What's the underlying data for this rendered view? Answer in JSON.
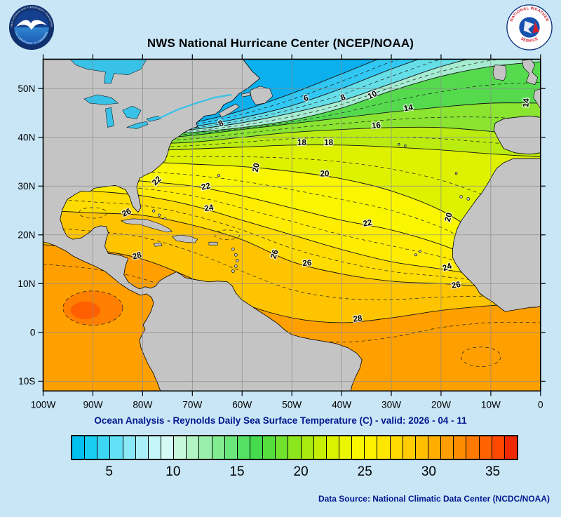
{
  "header": {
    "title": "NWS National Hurricane Center (NCEP/NOAA)",
    "noaa_logo": {
      "arc_top": "NATIONAL OCEANIC AND ATMOSPHERIC ADMINISTRATION",
      "arc_bottom": "U.S. DEPARTMENT OF COMMERCE"
    },
    "nws_logo": {
      "arc_top": "NATIONAL WEATHER",
      "arc_bottom": "SERVICE"
    }
  },
  "footer": {
    "subtitle": "Ocean Analysis - Reynolds Daily Sea Surface Temperature (C) - valid: 2026 - 04 - 11",
    "data_source": "Data Source: National Climatic Data Center (NCDC/NOAA)"
  },
  "colors": {
    "land": "#c4c4c4",
    "lake": "#38c2e8",
    "page_bg": "#c9e6f6",
    "subtitle_navy": "#02188f"
  },
  "chart_data": {
    "type": "heatmap",
    "title": "NWS National Hurricane Center (NCEP/NOAA)",
    "subtitle": "Ocean Analysis - Reynolds Daily Sea Surface Temperature (C) - valid: 2026 - 04 - 11",
    "variable": "Reynolds Daily Sea Surface Temperature",
    "unit": "C",
    "valid_date": "2026 - 04 - 11",
    "grid": true,
    "legend_position": "bottom",
    "map_extent": {
      "lon_west": 100,
      "lon_east": 0,
      "lat_top": 56,
      "lat_bottom": -12
    },
    "x_ticks": [
      {
        "label": "100W",
        "lon": 100
      },
      {
        "label": "90W",
        "lon": 90
      },
      {
        "label": "80W",
        "lon": 80
      },
      {
        "label": "70W",
        "lon": 70
      },
      {
        "label": "60W",
        "lon": 60
      },
      {
        "label": "50W",
        "lon": 50
      },
      {
        "label": "40W",
        "lon": 40
      },
      {
        "label": "30W",
        "lon": 30
      },
      {
        "label": "20W",
        "lon": 20
      },
      {
        "label": "10W",
        "lon": 10
      },
      {
        "label": "0",
        "lon": 0
      }
    ],
    "y_ticks": [
      {
        "label": "50N",
        "lat": 50
      },
      {
        "label": "40N",
        "lat": 40
      },
      {
        "label": "30N",
        "lat": 30
      },
      {
        "label": "20N",
        "lat": 20
      },
      {
        "label": "10N",
        "lat": 10
      },
      {
        "label": "0",
        "lat": 0
      },
      {
        "label": "10S",
        "lat": -10
      }
    ],
    "base_color": "#ffa000",
    "isotherms": [
      {
        "t": 28,
        "band_color": "#ffc400",
        "lats": [
          18,
          17,
          15,
          11,
          6,
          3,
          2,
          3,
          4.5,
          5.5,
          6
        ]
      },
      {
        "t": 26,
        "band_color": "#ffdc00",
        "lats": [
          25,
          24.5,
          24,
          22,
          19,
          14.5,
          12,
          10.5,
          10,
          9.5,
          10
        ]
      },
      {
        "t": 24,
        "band_color": "#ffec00",
        "lats": [
          30,
          29,
          28,
          26,
          23,
          20,
          17,
          14.5,
          13,
          11.5,
          11
        ]
      },
      {
        "t": 22,
        "band_color": "#f9f600",
        "lats": [
          33,
          32,
          31,
          30,
          28,
          25.5,
          23,
          21,
          18,
          14,
          12
        ]
      },
      {
        "t": 20,
        "band_color": "#def200",
        "lats": [
          36,
          35.5,
          35,
          34.5,
          34,
          33,
          31.5,
          29,
          25,
          19,
          15
        ]
      },
      {
        "t": 18,
        "band_color": "#baec10",
        "lats": [
          37,
          37,
          37.2,
          37.6,
          38,
          38.4,
          38.4,
          38,
          37.4,
          36.6,
          36
        ]
      },
      {
        "t": 16,
        "band_color": "#8ae430",
        "lats": [
          38,
          38.2,
          38.6,
          39,
          40,
          41,
          41.6,
          42,
          42,
          41.2,
          40.2
        ]
      },
      {
        "t": 14,
        "band_color": "#55da4e",
        "lats": [
          39,
          39.2,
          39.6,
          40.4,
          41.6,
          42.8,
          44,
          45.2,
          46.2,
          47,
          47
        ]
      },
      {
        "t": 10,
        "band_color": "#a6ecd2",
        "lats": [
          39.9,
          40.1,
          40.5,
          41,
          42,
          43.5,
          46,
          49.5,
          52.5,
          54.5,
          55.5
        ]
      },
      {
        "t": 8,
        "band_color": "#66dee8",
        "lats": [
          40.1,
          40.4,
          40.9,
          41.6,
          43,
          45,
          47.5,
          51,
          54.5,
          57,
          58
        ]
      },
      {
        "t": 6,
        "band_color": "#30c8f2",
        "lats": [
          40.3,
          40.7,
          41.3,
          42.2,
          44,
          46.5,
          50,
          54,
          57.5,
          60,
          61
        ]
      },
      {
        "t": 4,
        "band_color": "#0cb0ee",
        "lats": [
          40.5,
          41,
          41.8,
          43,
          45.5,
          49,
          53,
          57,
          60,
          62,
          63
        ]
      }
    ],
    "extra_dashed_isotherm": [
      14,
      13,
      11,
      7,
      2,
      -1,
      -2,
      -1,
      1,
      2,
      2
    ],
    "warm_blobs": [
      {
        "lon": 90,
        "lat": 5,
        "rx_deg": 6,
        "ry_deg": 3.5,
        "color": "#ff8000"
      },
      {
        "lon": 91.5,
        "lat": 4.5,
        "rx_deg": 3,
        "ry_deg": 1.8,
        "color": "#ff5f00"
      }
    ],
    "dashed_loops": [
      {
        "lon": 90,
        "lat": 5,
        "rx_deg": 6,
        "ry_deg": 3.5
      },
      {
        "lon": 90,
        "lat": 24.5,
        "rx_deg": 2.8,
        "ry_deg": 1.1
      },
      {
        "lon": 63,
        "lat": 20,
        "rx_deg": 2.5,
        "ry_deg": 1
      },
      {
        "lon": 12,
        "lat": -5,
        "rx_deg": 4,
        "ry_deg": 2
      }
    ],
    "contour_labels": [
      {
        "t": 10,
        "lon": 33.6,
        "lat": 48.2,
        "rot": -25
      },
      {
        "t": 8,
        "lon": 39.5,
        "lat": 47.7,
        "rot": -25
      },
      {
        "t": 6,
        "lon": 47,
        "lat": 47.5,
        "rot": -18
      },
      {
        "t": 8,
        "lon": 64,
        "lat": 42.4,
        "rot": -30
      },
      {
        "t": 14,
        "lon": 26.5,
        "lat": 45.5,
        "rot": -10
      },
      {
        "t": 16,
        "lon": 33,
        "lat": 41.9,
        "rot": -5
      },
      {
        "t": 14,
        "lon": 2.4,
        "lat": 47,
        "rot": -85
      },
      {
        "t": 18,
        "lon": 48,
        "lat": 38.4,
        "rot": 0
      },
      {
        "t": 18,
        "lon": 42.6,
        "lat": 38.4,
        "rot": 0
      },
      {
        "t": 22,
        "lon": 76.8,
        "lat": 30.7,
        "rot": -45
      },
      {
        "t": 22,
        "lon": 67.2,
        "lat": 29.4,
        "rot": -12
      },
      {
        "t": 20,
        "lon": 56.7,
        "lat": 33.7,
        "rot": -80
      },
      {
        "t": 20,
        "lon": 43.4,
        "lat": 32,
        "rot": 0
      },
      {
        "t": 26,
        "lon": 83,
        "lat": 24.1,
        "rot": -25
      },
      {
        "t": 24,
        "lon": 66.6,
        "lat": 25,
        "rot": -10
      },
      {
        "t": 26,
        "lon": 53,
        "lat": 15.9,
        "rot": -72
      },
      {
        "t": 22,
        "lon": 34.7,
        "lat": 21.9,
        "rot": -10
      },
      {
        "t": 28,
        "lon": 81,
        "lat": 15.2,
        "rot": -15
      },
      {
        "t": 24,
        "lon": 18.6,
        "lat": 12.9,
        "rot": -20
      },
      {
        "t": 20,
        "lon": 18,
        "lat": 23.5,
        "rot": -75
      },
      {
        "t": 26,
        "lon": 16.9,
        "lat": 9.2,
        "rot": -10
      },
      {
        "t": 26,
        "lon": 46.9,
        "lat": 13.7,
        "rot": -5
      },
      {
        "t": 28,
        "lon": 36.7,
        "lat": 2.3,
        "rot": -8
      }
    ],
    "colorbar": {
      "min": 2,
      "max": 37,
      "tick_values": [
        5,
        10,
        15,
        20,
        25,
        30,
        35
      ],
      "colors": [
        "#00c0f0",
        "#18ccf2",
        "#3cd6f4",
        "#62e0f5",
        "#8ae8f7",
        "#aaf0f8",
        "#c4f6fa",
        "#d6faf4",
        "#c8f8dc",
        "#b2f4c4",
        "#9af0aa",
        "#82ec92",
        "#6ae67a",
        "#54e062",
        "#46da4e",
        "#54de3e",
        "#70e22e",
        "#8ce61e",
        "#a8ea0e",
        "#c4ee02",
        "#daf200",
        "#ecf600",
        "#faf800",
        "#fff200",
        "#ffe600",
        "#ffda00",
        "#ffcc00",
        "#ffbe00",
        "#ffae00",
        "#ff9e00",
        "#ff8c00",
        "#ff7800",
        "#ff6200",
        "#ff4800",
        "#ee2800"
      ]
    }
  }
}
